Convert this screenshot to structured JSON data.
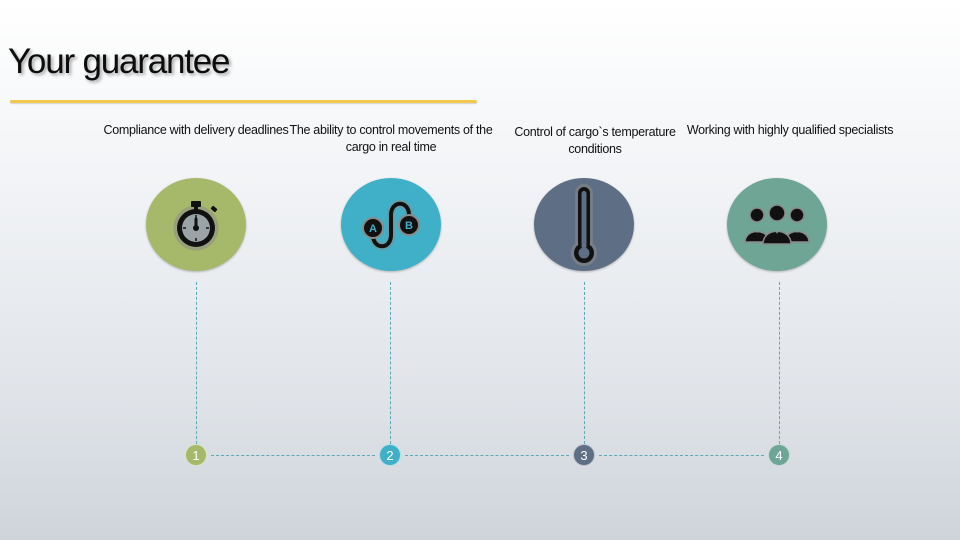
{
  "title": "Your guarantee",
  "colors": {
    "accent_line": "#f2c94c",
    "step1": "#a6b86a",
    "step2": "#3fb0c7",
    "step3": "#5e6e84",
    "step4": "#6fa595",
    "connector": "#5aa8b8"
  },
  "steps": [
    {
      "number": "1",
      "caption": "Compliance with delivery deadlines",
      "icon": "stopwatch-icon"
    },
    {
      "number": "2",
      "caption": "The ability to control movements of the cargo in real time",
      "icon": "route-a-to-b-icon",
      "icon_labels": [
        "A",
        "B"
      ]
    },
    {
      "number": "3",
      "caption": "Control of cargo`s temperature conditions",
      "icon": "thermometer-icon"
    },
    {
      "number": "4",
      "caption": "Working with highly qualified specialists",
      "icon": "team-people-icon"
    }
  ]
}
